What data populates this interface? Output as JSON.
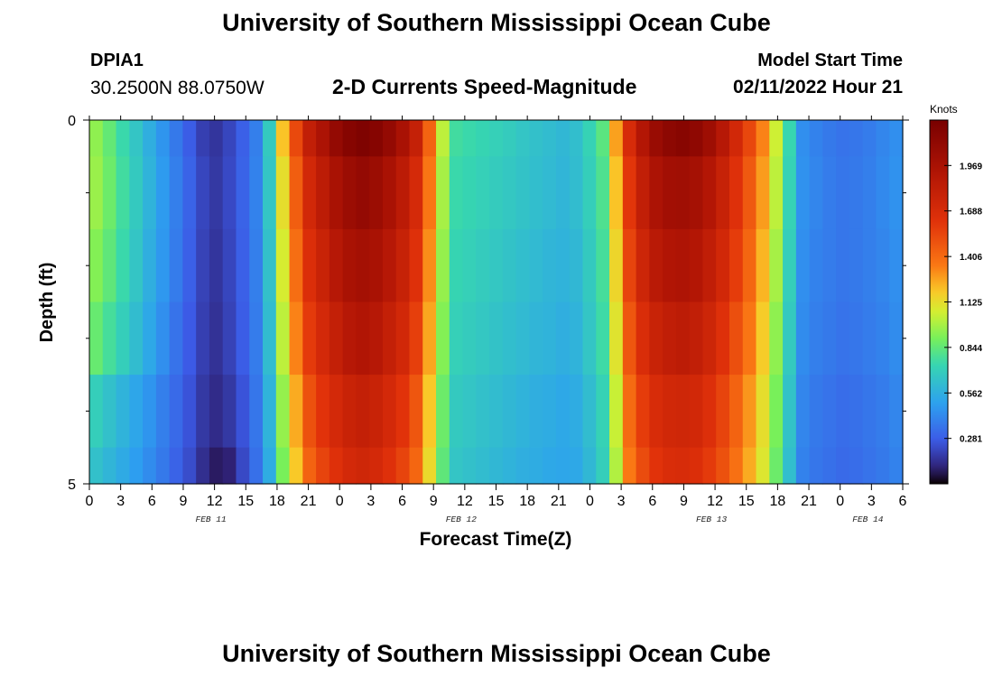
{
  "header": {
    "title_top": "University of Southern Mississippi Ocean Cube",
    "title_bottom": "University of Southern Mississippi Ocean Cube",
    "station_id": "DPIA1",
    "station_coords": "30.2500N  88.0750W",
    "subtitle": "2-D Currents Speed-Magnitude",
    "model_start_label": "Model Start Time",
    "model_start_value": "02/11/2022 Hour 21"
  },
  "chart_data": {
    "type": "heatmap",
    "title": "2-D Currents Speed-Magnitude",
    "xlabel": "Forecast Time(Z)",
    "ylabel": "Depth (ft)",
    "units": "Knots",
    "ylim": [
      0,
      5
    ],
    "y_ticks": [
      "0",
      "5"
    ],
    "x_start": "02/11/2022 00Z",
    "x_step_hours": 1.5,
    "x_tick_labels": [
      "0",
      "3",
      "6",
      "9",
      "12",
      "15",
      "18",
      "21",
      "0",
      "3",
      "6",
      "9",
      "12",
      "15",
      "18",
      "21",
      "0",
      "3",
      "6",
      "9",
      "12",
      "15",
      "18",
      "21",
      "0",
      "3",
      "6"
    ],
    "day_labels": [
      "FEB 11",
      "FEB 12",
      "FEB 13",
      "FEB 14"
    ],
    "colorbar_range": [
      0.0,
      2.25
    ],
    "colorbar_ticks": [
      "1.969",
      "1.688",
      "1.406",
      "1.125",
      "0.844",
      "0.562",
      "0.281"
    ],
    "depth_layers": [
      {
        "depth_range": [
          0.0,
          0.5
        ],
        "values": [
          0.94,
          0.85,
          0.75,
          0.66,
          0.56,
          0.46,
          0.37,
          0.28,
          0.19,
          0.16,
          0.21,
          0.29,
          0.39,
          0.68,
          1.2,
          1.53,
          1.82,
          1.95,
          2.09,
          2.17,
          2.21,
          2.17,
          2.09,
          1.97,
          1.8,
          1.43,
          1.02,
          0.77,
          0.75,
          0.73,
          0.71,
          0.69,
          0.66,
          0.64,
          0.62,
          0.6,
          0.63,
          0.72,
          0.83,
          1.27,
          1.69,
          1.91,
          2.06,
          2.13,
          2.16,
          2.12,
          2.03,
          1.89,
          1.72,
          1.54,
          1.33,
          1.05,
          0.74,
          0.44,
          0.4,
          0.37,
          0.35,
          0.36,
          0.38,
          0.41,
          0.44
        ]
      },
      {
        "depth_range": [
          0.5,
          1.5
        ],
        "values": [
          0.96,
          0.87,
          0.77,
          0.68,
          0.58,
          0.48,
          0.39,
          0.3,
          0.21,
          0.17,
          0.22,
          0.3,
          0.4,
          0.66,
          1.12,
          1.45,
          1.72,
          1.85,
          1.97,
          2.05,
          2.09,
          2.05,
          1.97,
          1.86,
          1.7,
          1.36,
          0.98,
          0.75,
          0.73,
          0.71,
          0.69,
          0.67,
          0.65,
          0.63,
          0.61,
          0.59,
          0.62,
          0.7,
          0.8,
          1.2,
          1.61,
          1.82,
          1.95,
          2.01,
          2.02,
          1.99,
          1.91,
          1.79,
          1.64,
          1.47,
          1.28,
          1.02,
          0.72,
          0.45,
          0.41,
          0.38,
          0.36,
          0.37,
          0.39,
          0.42,
          0.45
        ]
      },
      {
        "depth_range": [
          1.5,
          2.5
        ],
        "values": [
          0.92,
          0.84,
          0.75,
          0.66,
          0.56,
          0.47,
          0.38,
          0.29,
          0.2,
          0.16,
          0.21,
          0.29,
          0.39,
          0.64,
          1.07,
          1.39,
          1.66,
          1.78,
          1.89,
          1.97,
          2.0,
          1.97,
          1.89,
          1.79,
          1.64,
          1.31,
          0.95,
          0.73,
          0.71,
          0.69,
          0.67,
          0.65,
          0.63,
          0.61,
          0.59,
          0.58,
          0.6,
          0.68,
          0.78,
          1.15,
          1.55,
          1.75,
          1.87,
          1.92,
          1.94,
          1.91,
          1.83,
          1.72,
          1.58,
          1.42,
          1.23,
          0.98,
          0.7,
          0.44,
          0.4,
          0.38,
          0.36,
          0.37,
          0.39,
          0.41,
          0.44
        ]
      },
      {
        "depth_range": [
          2.5,
          3.5
        ],
        "values": [
          0.86,
          0.78,
          0.7,
          0.62,
          0.53,
          0.44,
          0.35,
          0.27,
          0.19,
          0.15,
          0.2,
          0.28,
          0.38,
          0.62,
          1.02,
          1.33,
          1.59,
          1.71,
          1.81,
          1.89,
          1.92,
          1.89,
          1.81,
          1.72,
          1.57,
          1.26,
          0.92,
          0.71,
          0.69,
          0.67,
          0.65,
          0.63,
          0.61,
          0.59,
          0.58,
          0.56,
          0.58,
          0.66,
          0.76,
          1.1,
          1.48,
          1.67,
          1.78,
          1.83,
          1.85,
          1.82,
          1.75,
          1.64,
          1.51,
          1.36,
          1.18,
          0.94,
          0.68,
          0.43,
          0.39,
          0.37,
          0.35,
          0.36,
          0.38,
          0.4,
          0.43
        ]
      },
      {
        "depth_range": [
          3.5,
          4.5
        ],
        "values": [
          0.7,
          0.64,
          0.58,
          0.52,
          0.46,
          0.39,
          0.32,
          0.25,
          0.17,
          0.13,
          0.17,
          0.25,
          0.36,
          0.58,
          0.95,
          1.25,
          1.5,
          1.62,
          1.71,
          1.78,
          1.81,
          1.78,
          1.71,
          1.62,
          1.48,
          1.19,
          0.87,
          0.68,
          0.66,
          0.64,
          0.62,
          0.6,
          0.58,
          0.56,
          0.55,
          0.53,
          0.55,
          0.62,
          0.72,
          1.04,
          1.4,
          1.58,
          1.68,
          1.73,
          1.74,
          1.72,
          1.65,
          1.55,
          1.43,
          1.29,
          1.12,
          0.9,
          0.65,
          0.41,
          0.37,
          0.35,
          0.33,
          0.34,
          0.36,
          0.38,
          0.41
        ]
      },
      {
        "depth_range": [
          4.5,
          5.0
        ],
        "values": [
          0.64,
          0.59,
          0.54,
          0.49,
          0.43,
          0.37,
          0.3,
          0.23,
          0.14,
          0.08,
          0.1,
          0.22,
          0.34,
          0.55,
          0.9,
          1.19,
          1.43,
          1.55,
          1.64,
          1.71,
          1.74,
          1.71,
          1.64,
          1.55,
          1.42,
          1.14,
          0.84,
          0.66,
          0.64,
          0.62,
          0.6,
          0.58,
          0.56,
          0.55,
          0.53,
          0.52,
          0.53,
          0.6,
          0.7,
          1.0,
          1.35,
          1.52,
          1.62,
          1.67,
          1.68,
          1.66,
          1.59,
          1.5,
          1.38,
          1.25,
          1.09,
          0.87,
          0.63,
          0.4,
          0.36,
          0.34,
          0.32,
          0.33,
          0.35,
          0.37,
          0.4
        ]
      }
    ]
  }
}
